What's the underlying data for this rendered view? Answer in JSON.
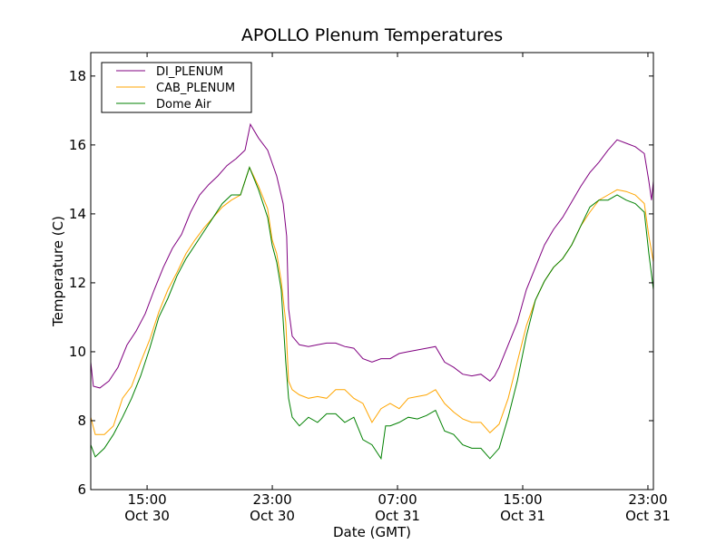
{
  "chart_data": {
    "type": "line",
    "title": "APOLLO Plenum Temperatures",
    "xlabel": "Date (GMT)",
    "ylabel": "Temperature (C)",
    "x_units": "hours since Oct 30 00:00 GMT",
    "xlim": [
      11.4,
      47.35
    ],
    "ylim": [
      6,
      18.68
    ],
    "x_ticks": [
      {
        "value": 15,
        "time": "15:00",
        "date": "Oct 30"
      },
      {
        "value": 23,
        "time": "23:00",
        "date": "Oct 30"
      },
      {
        "value": 31,
        "time": "07:00",
        "date": "Oct 31"
      },
      {
        "value": 39,
        "time": "15:00",
        "date": "Oct 31"
      },
      {
        "value": 47,
        "time": "23:00",
        "date": "Oct 31"
      }
    ],
    "y_ticks": [
      6,
      8,
      10,
      12,
      14,
      16,
      18
    ],
    "grid": false,
    "legend_position": "top-left",
    "series": [
      {
        "name": "DI_PLENUM",
        "color": "#800080",
        "points": [
          [
            11.4,
            9.7
          ],
          [
            11.57,
            9.0
          ],
          [
            11.98,
            8.95
          ],
          [
            12.56,
            9.15
          ],
          [
            13.14,
            9.55
          ],
          [
            13.72,
            10.2
          ],
          [
            14.3,
            10.6
          ],
          [
            14.88,
            11.1
          ],
          [
            15.46,
            11.8
          ],
          [
            16.04,
            12.45
          ],
          [
            16.62,
            13.0
          ],
          [
            17.2,
            13.4
          ],
          [
            17.78,
            14.05
          ],
          [
            18.36,
            14.55
          ],
          [
            18.94,
            14.85
          ],
          [
            19.52,
            15.1
          ],
          [
            20.1,
            15.4
          ],
          [
            20.68,
            15.6
          ],
          [
            21.26,
            15.85
          ],
          [
            21.6,
            16.6
          ],
          [
            22.12,
            16.2
          ],
          [
            22.7,
            15.85
          ],
          [
            23.28,
            15.1
          ],
          [
            23.69,
            14.3
          ],
          [
            23.92,
            13.35
          ],
          [
            24.04,
            11.25
          ],
          [
            24.27,
            10.45
          ],
          [
            24.73,
            10.2
          ],
          [
            25.31,
            10.15
          ],
          [
            25.89,
            10.2
          ],
          [
            26.47,
            10.25
          ],
          [
            27.05,
            10.25
          ],
          [
            27.63,
            10.15
          ],
          [
            28.21,
            10.1
          ],
          [
            28.79,
            9.8
          ],
          [
            29.37,
            9.7
          ],
          [
            29.95,
            9.8
          ],
          [
            30.53,
            9.8
          ],
          [
            31.11,
            9.95
          ],
          [
            31.69,
            10.0
          ],
          [
            32.27,
            10.05
          ],
          [
            32.85,
            10.1
          ],
          [
            33.43,
            10.15
          ],
          [
            34.01,
            9.7
          ],
          [
            34.59,
            9.55
          ],
          [
            35.17,
            9.35
          ],
          [
            35.75,
            9.3
          ],
          [
            36.33,
            9.35
          ],
          [
            36.91,
            9.15
          ],
          [
            37.2,
            9.3
          ],
          [
            37.49,
            9.55
          ],
          [
            38.07,
            10.2
          ],
          [
            38.65,
            10.85
          ],
          [
            39.23,
            11.8
          ],
          [
            39.81,
            12.45
          ],
          [
            40.39,
            13.1
          ],
          [
            40.97,
            13.55
          ],
          [
            41.55,
            13.9
          ],
          [
            42.13,
            14.35
          ],
          [
            42.71,
            14.8
          ],
          [
            43.29,
            15.2
          ],
          [
            43.87,
            15.5
          ],
          [
            44.45,
            15.85
          ],
          [
            45.03,
            16.15
          ],
          [
            45.61,
            16.05
          ],
          [
            46.19,
            15.95
          ],
          [
            46.77,
            15.75
          ],
          [
            47.06,
            14.95
          ],
          [
            47.23,
            14.4
          ],
          [
            47.35,
            14.95
          ]
        ]
      },
      {
        "name": "CAB_PLENUM",
        "color": "#FFA500",
        "points": [
          [
            11.4,
            8.1
          ],
          [
            11.69,
            7.6
          ],
          [
            12.27,
            7.6
          ],
          [
            12.85,
            7.85
          ],
          [
            13.43,
            8.65
          ],
          [
            14.01,
            9.0
          ],
          [
            14.59,
            9.7
          ],
          [
            15.17,
            10.35
          ],
          [
            15.75,
            11.15
          ],
          [
            16.33,
            11.8
          ],
          [
            16.91,
            12.3
          ],
          [
            17.49,
            12.85
          ],
          [
            18.07,
            13.25
          ],
          [
            18.65,
            13.6
          ],
          [
            19.23,
            13.9
          ],
          [
            19.81,
            14.2
          ],
          [
            20.39,
            14.4
          ],
          [
            20.97,
            14.55
          ],
          [
            21.54,
            15.35
          ],
          [
            22.12,
            14.8
          ],
          [
            22.7,
            14.15
          ],
          [
            22.99,
            13.25
          ],
          [
            23.28,
            12.85
          ],
          [
            23.57,
            12.05
          ],
          [
            23.86,
            10.85
          ],
          [
            24.04,
            9.15
          ],
          [
            24.27,
            8.9
          ],
          [
            24.73,
            8.75
          ],
          [
            25.31,
            8.65
          ],
          [
            25.89,
            8.7
          ],
          [
            26.47,
            8.65
          ],
          [
            27.05,
            8.9
          ],
          [
            27.63,
            8.9
          ],
          [
            28.21,
            8.65
          ],
          [
            28.79,
            8.5
          ],
          [
            29.37,
            7.95
          ],
          [
            29.95,
            8.35
          ],
          [
            30.53,
            8.5
          ],
          [
            31.11,
            8.35
          ],
          [
            31.69,
            8.65
          ],
          [
            32.27,
            8.7
          ],
          [
            32.85,
            8.75
          ],
          [
            33.43,
            8.9
          ],
          [
            34.01,
            8.5
          ],
          [
            34.59,
            8.25
          ],
          [
            35.17,
            8.05
          ],
          [
            35.75,
            7.95
          ],
          [
            36.33,
            7.95
          ],
          [
            36.91,
            7.65
          ],
          [
            37.49,
            7.9
          ],
          [
            38.07,
            8.65
          ],
          [
            38.65,
            9.7
          ],
          [
            39.23,
            10.75
          ],
          [
            39.81,
            11.5
          ],
          [
            40.39,
            12.05
          ],
          [
            40.97,
            12.45
          ],
          [
            41.55,
            12.7
          ],
          [
            42.13,
            13.1
          ],
          [
            42.71,
            13.65
          ],
          [
            43.29,
            14.05
          ],
          [
            43.87,
            14.4
          ],
          [
            44.45,
            14.55
          ],
          [
            45.03,
            14.7
          ],
          [
            45.61,
            14.65
          ],
          [
            46.19,
            14.55
          ],
          [
            46.77,
            14.3
          ],
          [
            47.06,
            13.35
          ],
          [
            47.35,
            12.6
          ]
        ]
      },
      {
        "name": "Dome Air",
        "color": "#008000",
        "points": [
          [
            11.4,
            7.3
          ],
          [
            11.69,
            6.95
          ],
          [
            12.27,
            7.2
          ],
          [
            12.85,
            7.6
          ],
          [
            13.43,
            8.1
          ],
          [
            14.01,
            8.65
          ],
          [
            14.59,
            9.3
          ],
          [
            15.17,
            10.1
          ],
          [
            15.75,
            11.0
          ],
          [
            16.33,
            11.55
          ],
          [
            16.91,
            12.2
          ],
          [
            17.49,
            12.7
          ],
          [
            18.07,
            13.1
          ],
          [
            18.65,
            13.5
          ],
          [
            19.23,
            13.9
          ],
          [
            19.81,
            14.3
          ],
          [
            20.39,
            14.55
          ],
          [
            20.97,
            14.55
          ],
          [
            21.54,
            15.35
          ],
          [
            22.12,
            14.7
          ],
          [
            22.7,
            13.9
          ],
          [
            22.99,
            13.1
          ],
          [
            23.28,
            12.6
          ],
          [
            23.57,
            11.8
          ],
          [
            23.86,
            9.7
          ],
          [
            24.04,
            8.65
          ],
          [
            24.27,
            8.1
          ],
          [
            24.73,
            7.85
          ],
          [
            25.31,
            8.1
          ],
          [
            25.89,
            7.95
          ],
          [
            26.47,
            8.2
          ],
          [
            27.05,
            8.2
          ],
          [
            27.63,
            7.95
          ],
          [
            28.21,
            8.1
          ],
          [
            28.79,
            7.45
          ],
          [
            29.37,
            7.3
          ],
          [
            29.95,
            6.9
          ],
          [
            30.24,
            7.85
          ],
          [
            30.53,
            7.85
          ],
          [
            31.11,
            7.95
          ],
          [
            31.69,
            8.1
          ],
          [
            32.27,
            8.05
          ],
          [
            32.85,
            8.15
          ],
          [
            33.43,
            8.3
          ],
          [
            34.01,
            7.7
          ],
          [
            34.59,
            7.6
          ],
          [
            35.17,
            7.3
          ],
          [
            35.75,
            7.2
          ],
          [
            36.33,
            7.2
          ],
          [
            36.91,
            6.9
          ],
          [
            37.49,
            7.2
          ],
          [
            38.07,
            8.1
          ],
          [
            38.65,
            9.15
          ],
          [
            39.23,
            10.45
          ],
          [
            39.81,
            11.5
          ],
          [
            40.39,
            12.05
          ],
          [
            40.97,
            12.45
          ],
          [
            41.55,
            12.7
          ],
          [
            42.13,
            13.1
          ],
          [
            42.71,
            13.65
          ],
          [
            43.29,
            14.2
          ],
          [
            43.87,
            14.4
          ],
          [
            44.45,
            14.4
          ],
          [
            45.03,
            14.55
          ],
          [
            45.61,
            14.4
          ],
          [
            46.19,
            14.3
          ],
          [
            46.77,
            14.05
          ],
          [
            47.06,
            12.85
          ],
          [
            47.35,
            11.8
          ]
        ]
      }
    ]
  }
}
